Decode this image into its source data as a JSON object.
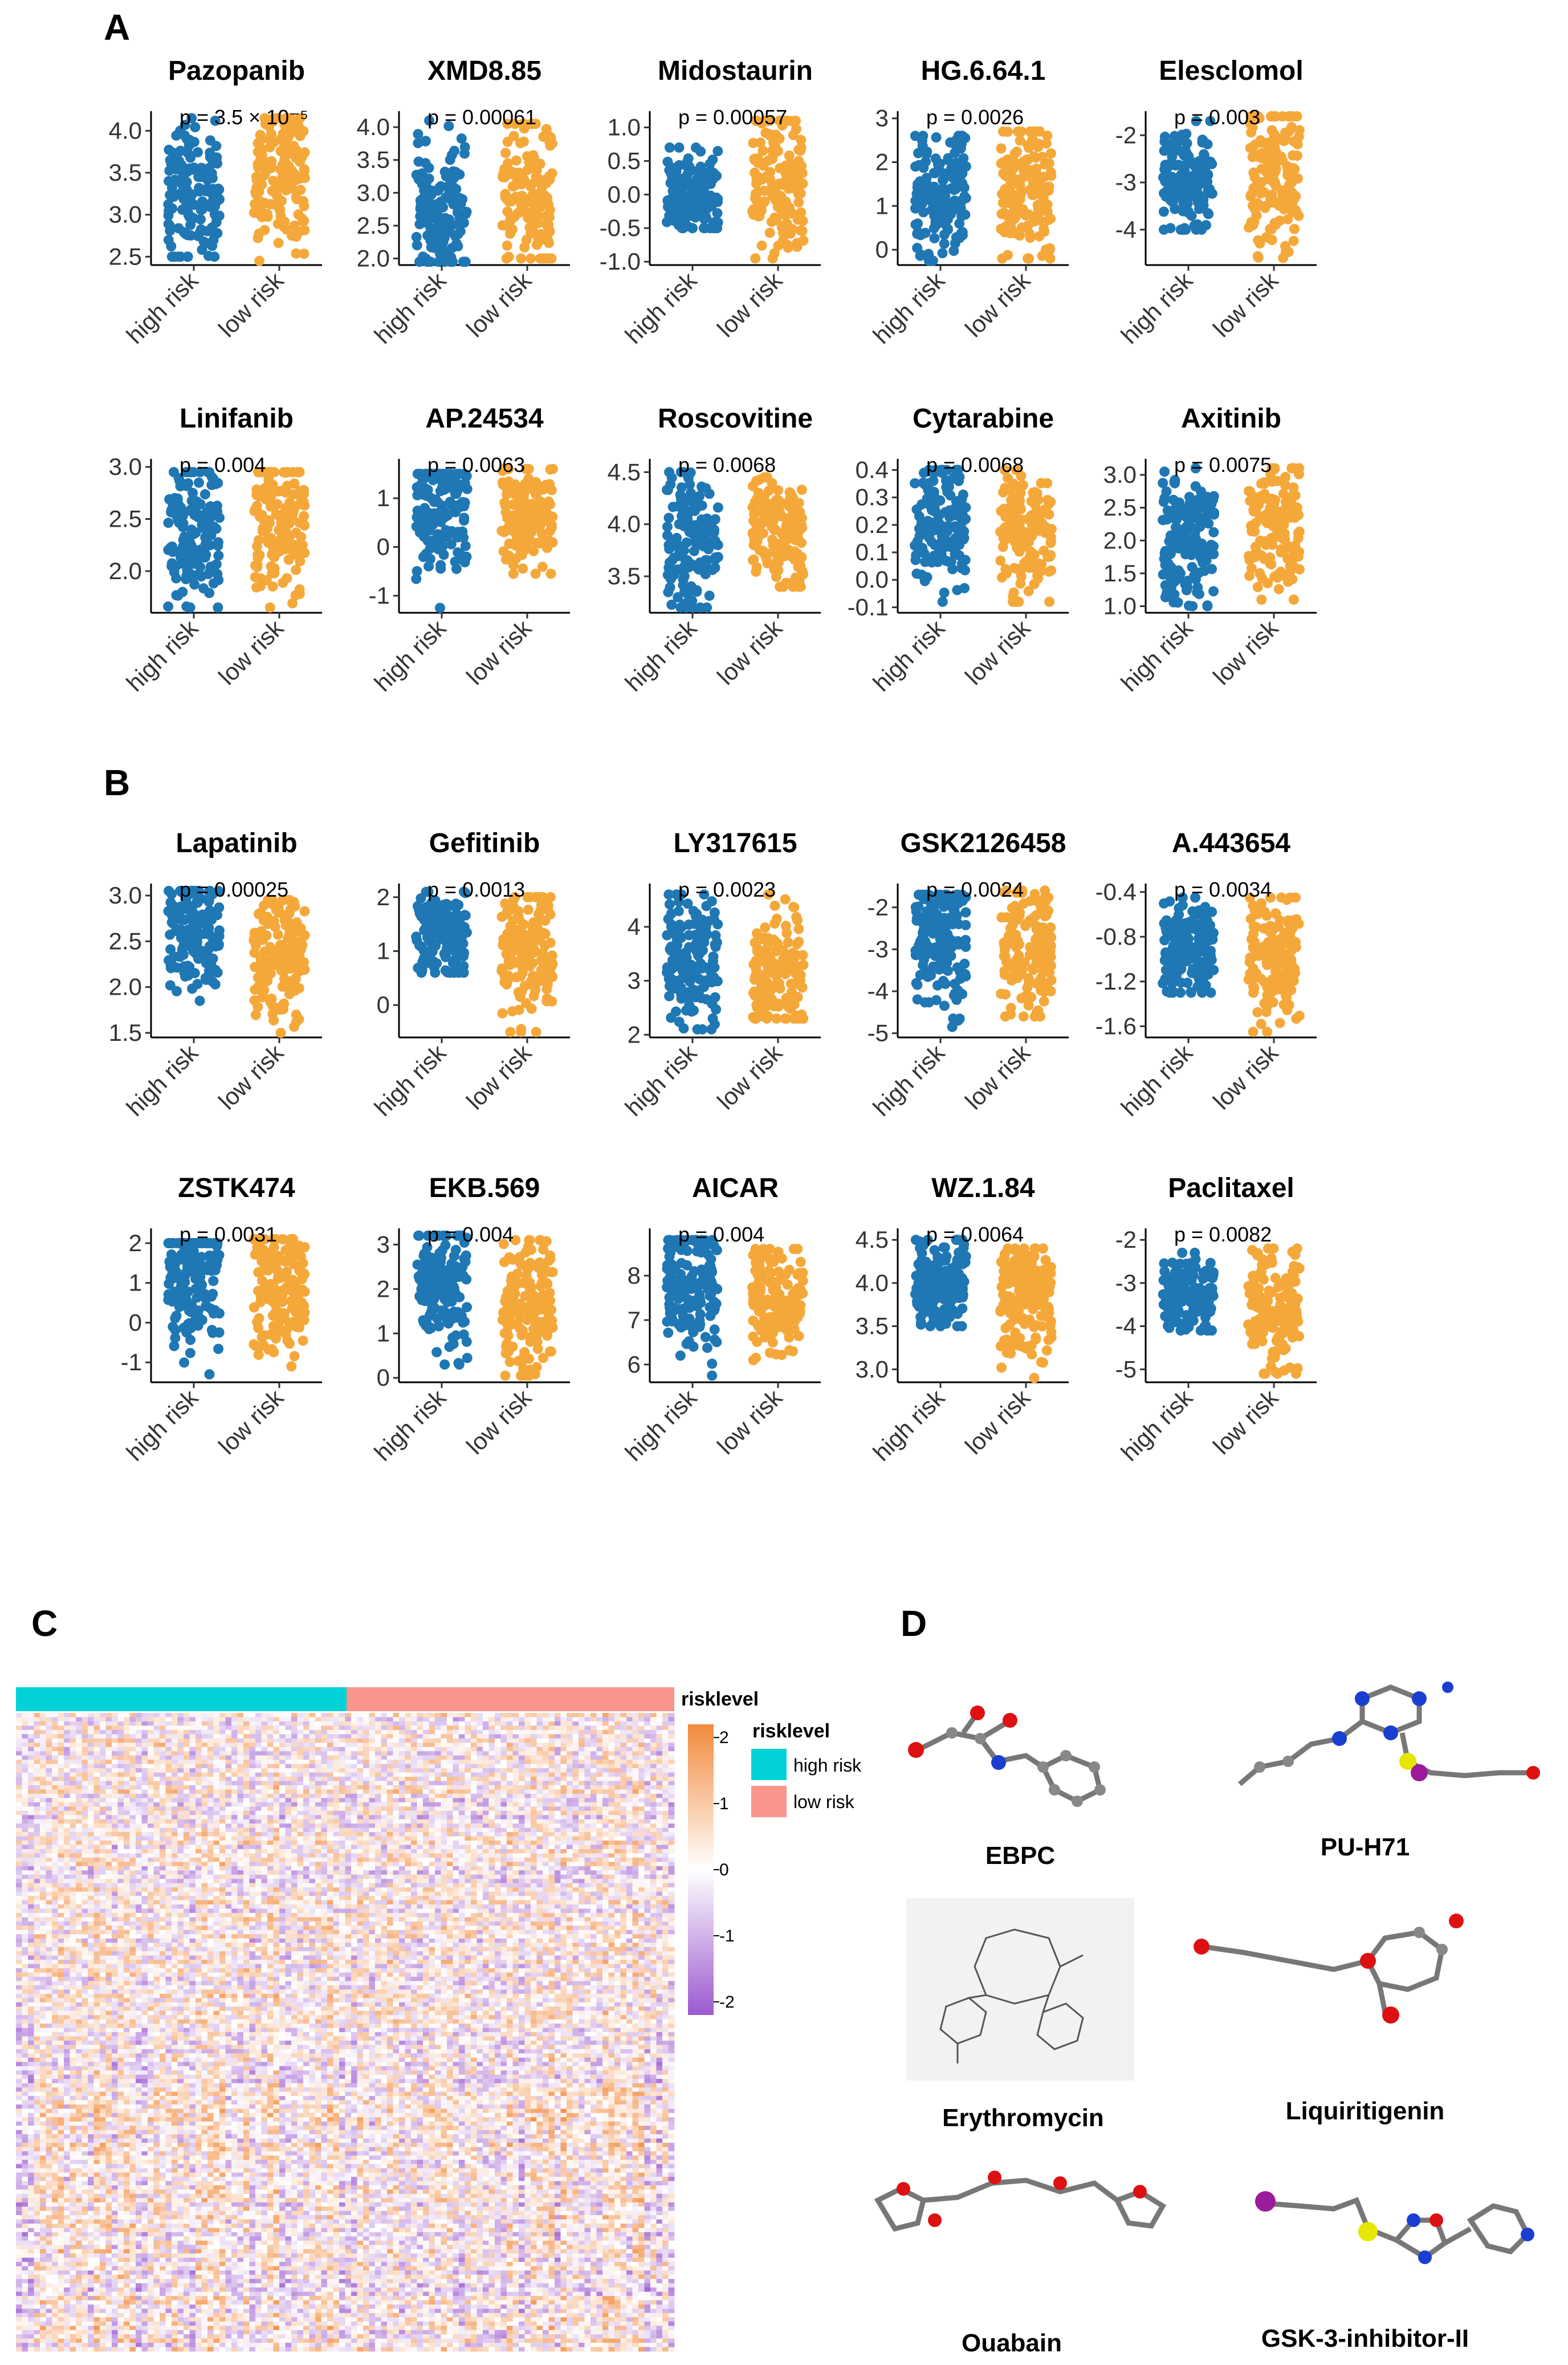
{
  "panels": {
    "A": "A",
    "B": "B",
    "C": "C",
    "D": "D"
  },
  "colors": {
    "high_risk_point": "#1f77b4",
    "low_risk_point": "#f5a83a",
    "heatmap_high": "#f28a3c",
    "heatmap_low": "#9b59d0",
    "heatmap_mid": "#ffffff",
    "anno_high": "#00d2d8",
    "anno_low": "#f9958c"
  },
  "chart_data": [
    {
      "type": "scatter",
      "panel": "A",
      "title": "Pazopanib",
      "p_label": "p = 3.5 × 10⁻⁵",
      "categories": [
        "high risk",
        "low risk"
      ],
      "ylim": [
        2.4,
        4.2
      ],
      "yticks": [
        2.5,
        3.0,
        3.5,
        4.0
      ],
      "ytick_labels": [
        "2.5",
        "3.0",
        "3.5",
        "4.0"
      ],
      "high_range": [
        2.5,
        4.15
      ],
      "low_range": [
        2.45,
        4.15
      ],
      "high_center": 3.25,
      "low_center": 3.45
    },
    {
      "type": "scatter",
      "panel": "A",
      "title": "XMD8.85",
      "p_label": "p = 0.00061",
      "categories": [
        "high risk",
        "low risk"
      ],
      "ylim": [
        1.9,
        4.2
      ],
      "yticks": [
        2.0,
        2.5,
        3.0,
        3.5,
        4.0
      ],
      "ytick_labels": [
        "2.0",
        "2.5",
        "3.0",
        "3.5",
        "4.0"
      ],
      "high_range": [
        1.95,
        4.1
      ],
      "low_range": [
        2.0,
        4.05
      ],
      "high_center": 2.75,
      "low_center": 2.9
    },
    {
      "type": "scatter",
      "panel": "A",
      "title": "Midostaurin",
      "p_label": "p = 0.00057",
      "categories": [
        "high risk",
        "low risk"
      ],
      "ylim": [
        -1.05,
        1.2
      ],
      "yticks": [
        -1.0,
        -0.5,
        0.0,
        0.5,
        1.0
      ],
      "ytick_labels": [
        "-1.0",
        "-0.5",
        "0.0",
        "0.5",
        "1.0"
      ],
      "high_range": [
        -0.5,
        0.7
      ],
      "low_range": [
        -0.95,
        1.1
      ],
      "high_center": 0.0,
      "low_center": 0.15
    },
    {
      "type": "scatter",
      "panel": "A",
      "title": "HG.6.64.1",
      "p_label": "p = 0.0026",
      "categories": [
        "high risk",
        "low risk"
      ],
      "ylim": [
        -0.35,
        3.1
      ],
      "yticks": [
        0,
        1,
        2,
        3
      ],
      "ytick_labels": [
        "0",
        "1",
        "2",
        "3"
      ],
      "high_range": [
        -0.25,
        2.6
      ],
      "low_range": [
        -0.2,
        2.7
      ],
      "high_center": 1.2,
      "low_center": 1.4
    },
    {
      "type": "scatter",
      "panel": "A",
      "title": "Elesclomol",
      "p_label": "p = 0.003",
      "categories": [
        "high risk",
        "low risk"
      ],
      "ylim": [
        -4.75,
        -1.55
      ],
      "yticks": [
        -4,
        -3,
        -2
      ],
      "ytick_labels": [
        "-4",
        "-3",
        "-2"
      ],
      "high_range": [
        -4.0,
        -1.7
      ],
      "low_range": [
        -4.6,
        -1.6
      ],
      "high_center": -3.0,
      "low_center": -2.8
    },
    {
      "type": "scatter",
      "panel": "A",
      "title": "Linifanib",
      "p_label": "p = 0.004",
      "categories": [
        "high risk",
        "low risk"
      ],
      "ylim": [
        1.6,
        3.05
      ],
      "yticks": [
        2.0,
        2.5,
        3.0
      ],
      "ytick_labels": [
        "2.0",
        "2.5",
        "3.0"
      ],
      "high_range": [
        1.65,
        2.95
      ],
      "low_range": [
        1.65,
        2.95
      ],
      "high_center": 2.35,
      "low_center": 2.45
    },
    {
      "type": "scatter",
      "panel": "A",
      "title": "AP.24534",
      "p_label": "p = 0.0063",
      "categories": [
        "high risk",
        "low risk"
      ],
      "ylim": [
        -1.35,
        1.75
      ],
      "yticks": [
        -1,
        0,
        1
      ],
      "ytick_labels": [
        "-1",
        "0",
        "1"
      ],
      "high_range": [
        -1.25,
        1.5
      ],
      "low_range": [
        -0.55,
        1.6
      ],
      "high_center": 0.75,
      "low_center": 0.65
    },
    {
      "type": "scatter",
      "panel": "A",
      "title": "Roscovitine",
      "p_label": "p = 0.0068",
      "categories": [
        "high risk",
        "low risk"
      ],
      "ylim": [
        3.15,
        4.6
      ],
      "yticks": [
        3.5,
        4.0,
        4.5
      ],
      "ytick_labels": [
        "3.5",
        "4.0",
        "4.5"
      ],
      "high_range": [
        3.2,
        4.5
      ],
      "low_range": [
        3.4,
        4.45
      ],
      "high_center": 3.8,
      "low_center": 3.9
    },
    {
      "type": "scatter",
      "panel": "A",
      "title": "Cytarabine",
      "p_label": "p = 0.0068",
      "categories": [
        "high risk",
        "low risk"
      ],
      "ylim": [
        -0.12,
        0.43
      ],
      "yticks": [
        -0.1,
        0.0,
        0.1,
        0.2,
        0.3,
        0.4
      ],
      "ytick_labels": [
        "-0.1",
        "0.0",
        "0.1",
        "0.2",
        "0.3",
        "0.4"
      ],
      "high_range": [
        -0.08,
        0.4
      ],
      "low_range": [
        -0.08,
        0.4
      ],
      "high_center": 0.2,
      "low_center": 0.17
    },
    {
      "type": "scatter",
      "panel": "A",
      "title": "Axitinib",
      "p_label": "p = 0.0075",
      "categories": [
        "high risk",
        "low risk"
      ],
      "ylim": [
        0.9,
        3.2
      ],
      "yticks": [
        1.0,
        1.5,
        2.0,
        2.5,
        3.0
      ],
      "ytick_labels": [
        "1.0",
        "1.5",
        "2.0",
        "2.5",
        "3.0"
      ],
      "high_range": [
        1.0,
        3.1
      ],
      "low_range": [
        1.1,
        3.1
      ],
      "high_center": 2.0,
      "low_center": 2.2
    },
    {
      "type": "scatter",
      "panel": "B",
      "title": "Lapatinib",
      "p_label": "p = 0.00025",
      "categories": [
        "high risk",
        "low risk"
      ],
      "ylim": [
        1.45,
        3.1
      ],
      "yticks": [
        1.5,
        2.0,
        2.5,
        3.0
      ],
      "ytick_labels": [
        "1.5",
        "2.0",
        "2.5",
        "3.0"
      ],
      "high_range": [
        1.85,
        3.05
      ],
      "low_range": [
        1.5,
        2.95
      ],
      "high_center": 2.6,
      "low_center": 2.4
    },
    {
      "type": "scatter",
      "panel": "B",
      "title": "Gefitinib",
      "p_label": "p = 0.0013",
      "categories": [
        "high risk",
        "low risk"
      ],
      "ylim": [
        -0.6,
        2.2
      ],
      "yticks": [
        0,
        1,
        2
      ],
      "ytick_labels": [
        "0",
        "1",
        "2"
      ],
      "high_range": [
        0.6,
        2.1
      ],
      "low_range": [
        -0.5,
        2.0
      ],
      "high_center": 1.3,
      "low_center": 1.05
    },
    {
      "type": "scatter",
      "panel": "B",
      "title": "LY317615",
      "p_label": "p = 0.0023",
      "categories": [
        "high risk",
        "low risk"
      ],
      "ylim": [
        1.95,
        4.75
      ],
      "yticks": [
        2,
        3,
        4
      ],
      "ytick_labels": [
        "2",
        "3",
        "4"
      ],
      "high_range": [
        2.1,
        4.6
      ],
      "low_range": [
        2.3,
        4.6
      ],
      "high_center": 3.25,
      "low_center": 3.05
    },
    {
      "type": "scatter",
      "panel": "B",
      "title": "GSK2126458",
      "p_label": "p = 0.0024",
      "categories": [
        "high risk",
        "low risk"
      ],
      "ylim": [
        -5.1,
        -1.5
      ],
      "yticks": [
        -5,
        -4,
        -3,
        -2
      ],
      "ytick_labels": [
        "-5",
        "-4",
        "-3",
        "-2"
      ],
      "high_range": [
        -4.85,
        -1.7
      ],
      "low_range": [
        -4.6,
        -1.6
      ],
      "high_center": -2.7,
      "low_center": -3.0
    },
    {
      "type": "scatter",
      "panel": "B",
      "title": "A.443654",
      "p_label": "p = 0.0034",
      "categories": [
        "high risk",
        "low risk"
      ],
      "ylim": [
        -1.7,
        -0.35
      ],
      "yticks": [
        -1.6,
        -1.2,
        -0.8,
        -0.4
      ],
      "ytick_labels": [
        "-1.6",
        "-1.2",
        "-0.8",
        "-0.4"
      ],
      "high_range": [
        -1.3,
        -0.45
      ],
      "low_range": [
        -1.65,
        -0.45
      ],
      "high_center": -0.9,
      "low_center": -1.0
    },
    {
      "type": "scatter",
      "panel": "B",
      "title": "ZSTK474",
      "p_label": "p = 0.0031",
      "categories": [
        "high risk",
        "low risk"
      ],
      "ylim": [
        -1.5,
        2.3
      ],
      "yticks": [
        -1,
        0,
        1,
        2
      ],
      "ytick_labels": [
        "-1",
        "0",
        "1",
        "2"
      ],
      "high_range": [
        -1.3,
        2.0
      ],
      "low_range": [
        -1.1,
        2.1
      ],
      "high_center": 1.2,
      "low_center": 0.9
    },
    {
      "type": "scatter",
      "panel": "B",
      "title": "EKB.569",
      "p_label": "p = 0.004",
      "categories": [
        "high risk",
        "low risk"
      ],
      "ylim": [
        -0.1,
        3.3
      ],
      "yticks": [
        0,
        1,
        2,
        3
      ],
      "ytick_labels": [
        "0",
        "1",
        "2",
        "3"
      ],
      "high_range": [
        0.3,
        3.2
      ],
      "low_range": [
        0.05,
        3.1
      ],
      "high_center": 2.0,
      "low_center": 1.6
    },
    {
      "type": "scatter",
      "panel": "B",
      "title": "AICAR",
      "p_label": "p = 0.004",
      "categories": [
        "high risk",
        "low risk"
      ],
      "ylim": [
        5.6,
        9.0
      ],
      "yticks": [
        6,
        7,
        8
      ],
      "ytick_labels": [
        "6",
        "7",
        "8"
      ],
      "high_range": [
        5.75,
        8.8
      ],
      "low_range": [
        6.1,
        8.6
      ],
      "high_center": 7.8,
      "low_center": 7.5
    },
    {
      "type": "scatter",
      "panel": "B",
      "title": "WZ.1.84",
      "p_label": "p = 0.0064",
      "categories": [
        "high risk",
        "low risk"
      ],
      "ylim": [
        2.85,
        4.6
      ],
      "yticks": [
        3.0,
        3.5,
        4.0,
        4.5
      ],
      "ytick_labels": [
        "3.0",
        "3.5",
        "4.0",
        "4.5"
      ],
      "high_range": [
        3.5,
        4.5
      ],
      "low_range": [
        2.9,
        4.4
      ],
      "high_center": 3.95,
      "low_center": 3.8
    },
    {
      "type": "scatter",
      "panel": "B",
      "title": "Paclitaxel",
      "p_label": "p = 0.0082",
      "categories": [
        "high risk",
        "low risk"
      ],
      "ylim": [
        -5.3,
        -1.8
      ],
      "yticks": [
        -5,
        -4,
        -3,
        -2
      ],
      "ytick_labels": [
        "-5",
        "-4",
        "-3",
        "-2"
      ],
      "high_range": [
        -4.1,
        -2.3
      ],
      "low_range": [
        -5.1,
        -2.2
      ],
      "high_center": -3.3,
      "low_center": -3.6
    },
    {
      "type": "heatmap",
      "panel": "C",
      "annotation_label": "risklevel",
      "legend_title": "risklevel",
      "legend_items": [
        "high risk",
        "low risk"
      ],
      "scale_ticks": [
        2,
        1,
        0,
        -1,
        -2
      ],
      "scale_tick_labels": [
        "2",
        "1",
        "0",
        "-1",
        "-2"
      ],
      "range": [
        -2.2,
        2.2
      ],
      "groups": [
        "high risk",
        "low risk"
      ]
    }
  ],
  "drugs": [
    "EBPC",
    "PU-H71",
    "Erythromycin",
    "Liquiritigenin",
    "Ouabain",
    "GSK-3-inhibitor-II"
  ]
}
